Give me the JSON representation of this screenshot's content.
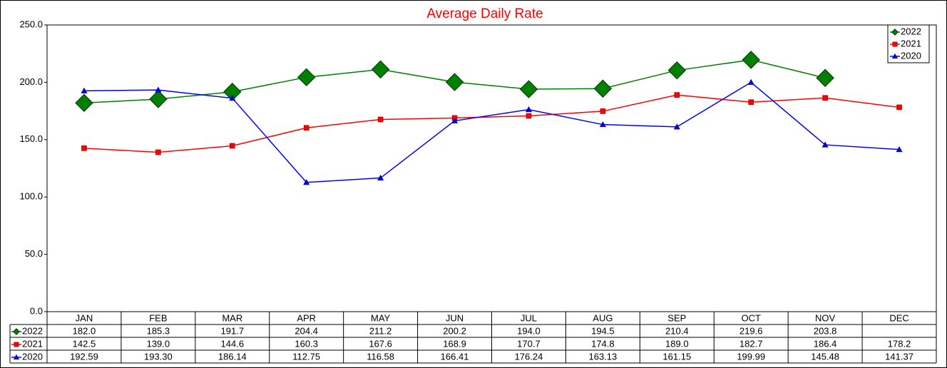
{
  "chart_data": {
    "type": "line",
    "title": "Average Daily Rate",
    "categories": [
      "JAN",
      "FEB",
      "MAR",
      "APR",
      "MAY",
      "JUN",
      "JUL",
      "AUG",
      "SEP",
      "OCT",
      "NOV",
      "DEC"
    ],
    "ylim": [
      0,
      250
    ],
    "yticks": [
      {
        "value": 0,
        "label": "0.0"
      },
      {
        "value": 50,
        "label": "50.0"
      },
      {
        "value": 100,
        "label": "100.0"
      },
      {
        "value": 150,
        "label": "150.0"
      },
      {
        "value": 200,
        "label": "200.0"
      },
      {
        "value": 250,
        "label": "250.0"
      }
    ],
    "legend": "top-right",
    "series": [
      {
        "name": "2022",
        "color": "#008000",
        "marker": "diamond",
        "values": [
          182.0,
          185.3,
          191.7,
          204.4,
          211.2,
          200.2,
          194.0,
          194.5,
          210.4,
          219.6,
          203.8,
          null
        ],
        "value_labels": [
          "182.0",
          "185.3",
          "191.7",
          "204.4",
          "211.2",
          "200.2",
          "194.0",
          "194.5",
          "210.4",
          "219.6",
          "203.8",
          null
        ]
      },
      {
        "name": "2021",
        "color": "#ff0000",
        "marker": "square",
        "values": [
          142.5,
          139.0,
          144.6,
          160.3,
          167.6,
          168.9,
          170.7,
          174.8,
          189.0,
          182.7,
          186.4,
          178.2
        ],
        "value_labels": [
          "142.5",
          "139.0",
          "144.6",
          "160.3",
          "167.6",
          "168.9",
          "170.7",
          "174.8",
          "189.0",
          "182.7",
          "186.4",
          "178.2"
        ]
      },
      {
        "name": "2020",
        "color": "#0000ff",
        "marker": "triangle",
        "values": [
          192.59,
          193.3,
          186.14,
          112.75,
          116.58,
          166.41,
          176.24,
          163.13,
          161.15,
          199.99,
          145.48,
          141.37
        ],
        "value_labels": [
          "192.59",
          "193.30",
          "186.14",
          "112.75",
          "116.58",
          "166.41",
          "176.24",
          "163.13",
          "161.15",
          "199.99",
          "145.48",
          "141.37"
        ]
      }
    ]
  }
}
